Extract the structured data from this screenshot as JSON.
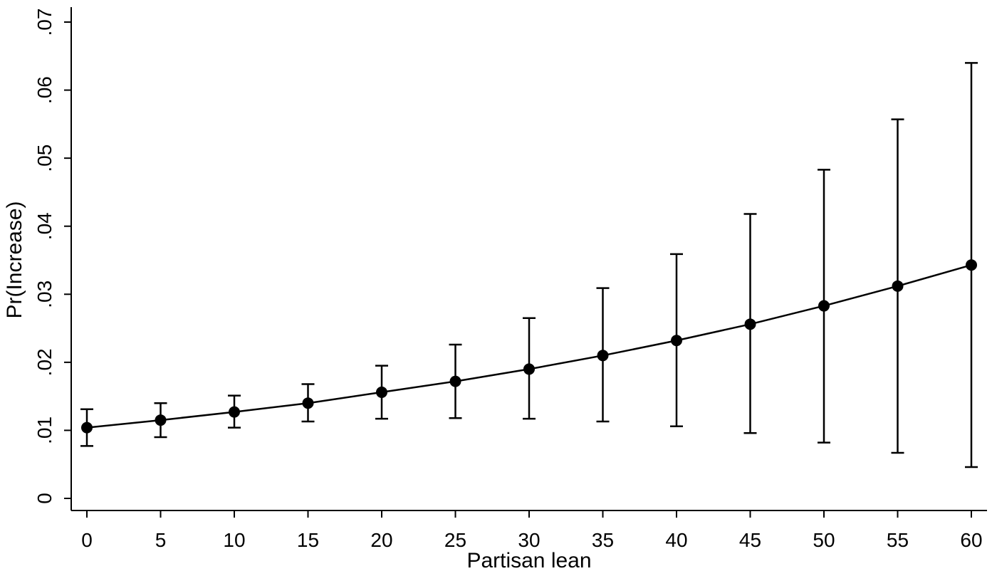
{
  "chart_data": {
    "type": "line",
    "title": "",
    "xlabel": "Partisan lean",
    "ylabel": "Pr(Increase)",
    "xlim": [
      0,
      60
    ],
    "ylim": [
      0,
      0.07
    ],
    "x_ticks": [
      0,
      5,
      10,
      15,
      20,
      25,
      30,
      35,
      40,
      45,
      50,
      55,
      60
    ],
    "x_tick_labels": [
      "0",
      "5",
      "10",
      "15",
      "20",
      "25",
      "30",
      "35",
      "40",
      "45",
      "50",
      "55",
      "60"
    ],
    "y_ticks": [
      0,
      0.01,
      0.02,
      0.03,
      0.04,
      0.05,
      0.06,
      0.07
    ],
    "y_tick_labels": [
      "0",
      ".01",
      ".02",
      ".03",
      ".04",
      ".05",
      ".06",
      ".07"
    ],
    "grid": false,
    "legend": "none",
    "colors": {
      "line": "#000000",
      "marker": "#000000",
      "axis": "#000000"
    },
    "series": [
      {
        "x": [
          0,
          5,
          10,
          15,
          20,
          25,
          30,
          35,
          40,
          45,
          50,
          55,
          60
        ],
        "y": [
          0.0104,
          0.0115,
          0.0127,
          0.014,
          0.0156,
          0.0172,
          0.019,
          0.021,
          0.0232,
          0.0256,
          0.0283,
          0.0312,
          0.0343
        ],
        "ci_low": [
          0.0077,
          0.009,
          0.0104,
          0.0113,
          0.0117,
          0.0118,
          0.0117,
          0.0113,
          0.0106,
          0.0096,
          0.0082,
          0.0067,
          0.0046
        ],
        "ci_high": [
          0.0131,
          0.014,
          0.0151,
          0.0168,
          0.0195,
          0.0226,
          0.0265,
          0.0309,
          0.0359,
          0.0418,
          0.0483,
          0.0557,
          0.064
        ]
      }
    ]
  }
}
